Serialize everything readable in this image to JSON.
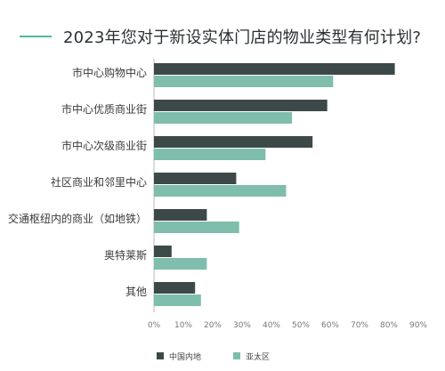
{
  "colors": {
    "china": "#3d4948",
    "apac": "#7fbdac",
    "accent_line": "#4dbb93",
    "axis": "#b8b8b8",
    "text": "#333333"
  },
  "chart_data": {
    "type": "bar",
    "orientation": "horizontal",
    "title": "2023年您对于新设实体门店的物业类型有何计划?",
    "categories": [
      "市中心购物中心",
      "市中心优质商业街",
      "市中心次级商业街",
      "社区商业和邻里中心",
      "交通枢纽内的商业（如地铁）",
      "奥特莱斯",
      "其他"
    ],
    "series": [
      {
        "name": "中国内地",
        "color": "#3d4948",
        "values": [
          82,
          59,
          54,
          28,
          18,
          6,
          14
        ]
      },
      {
        "name": "亚太区",
        "color": "#7fbdac",
        "values": [
          61,
          47,
          38,
          45,
          29,
          18,
          16
        ]
      }
    ],
    "xlim": [
      0,
      90
    ],
    "xticks": [
      "0%",
      "10%",
      "20%",
      "30%",
      "40%",
      "50%",
      "60%",
      "70%",
      "80%",
      "90%"
    ],
    "grid": false,
    "legend_position": "bottom"
  }
}
